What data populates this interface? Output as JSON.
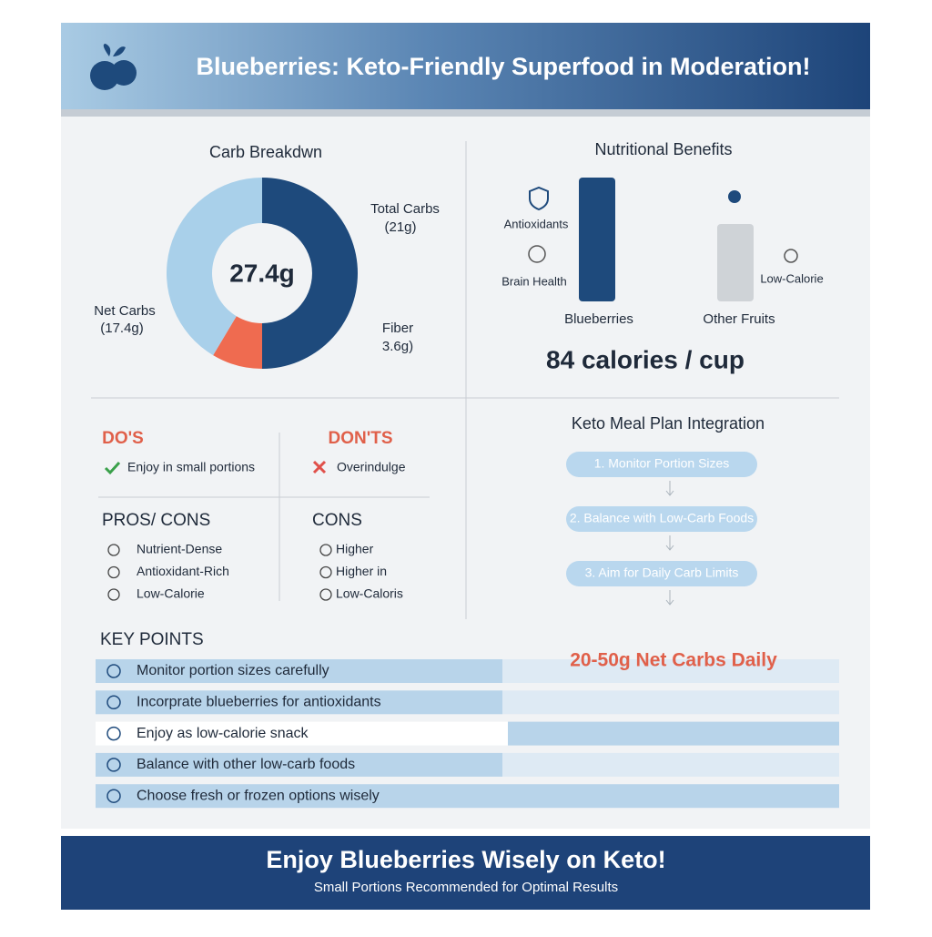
{
  "header": {
    "title": "Blueberries: Keto-Friendly Superfood in Moderation!"
  },
  "carb_breakdown": {
    "type": "donut",
    "title": "Carb Breakdwn",
    "center_label": "27.4g",
    "segments": [
      {
        "name": "Total Carbs",
        "value": 21,
        "value_label": "(21g)",
        "color": "#1e4a7c"
      },
      {
        "name": "Fiber",
        "value": 3.6,
        "value_label": "3.6g)",
        "color": "#ef6b50"
      },
      {
        "name": "Net Carbs",
        "value": 17.4,
        "value_label": "(17.4g)",
        "color": "#a9d0ea"
      }
    ]
  },
  "benefits": {
    "title": "Nutritional Benefits",
    "bars": [
      {
        "label": "Blueberries",
        "notes": [
          "Antioxidants",
          "Brain Health"
        ]
      },
      {
        "label": "Other Fruits",
        "notes": [
          "Low-Calorie"
        ]
      }
    ],
    "calories": "84 calories / cup"
  },
  "dos": {
    "title": "DO'S",
    "item": "Enjoy in small portions"
  },
  "donts": {
    "title": "DON'TS",
    "item": "Overindulge"
  },
  "pros": {
    "title": "PROS/ CONS",
    "items": [
      "Nutrient-Dense",
      "Antioxidant-Rich",
      "Low-Calorie"
    ]
  },
  "cons": {
    "title": "CONS",
    "items": [
      "Higher",
      "Higher in",
      "Low-Caloris"
    ]
  },
  "meal_plan": {
    "title": "Keto Meal Plan Integration",
    "steps": [
      "1. Monitor Portion Sizes",
      "2. Balance with Low-Carb Foods",
      "3. Aim for Daily Carb Limits"
    ]
  },
  "key_points": {
    "title": "KEY POINTS",
    "highlight": "20-50g Net Carbs Daily",
    "items": [
      "Monitor portion sizes carefully",
      "Incorprate blueberries for antioxidants",
      "Enjoy as low-calorie snack",
      "Balance with other low-carb foods",
      "Choose fresh or frozen options wisely"
    ]
  },
  "footer": {
    "title": "Enjoy Blueberries Wisely on Keto!",
    "subtitle": "Small Portions Recommended for Optimal Results"
  }
}
